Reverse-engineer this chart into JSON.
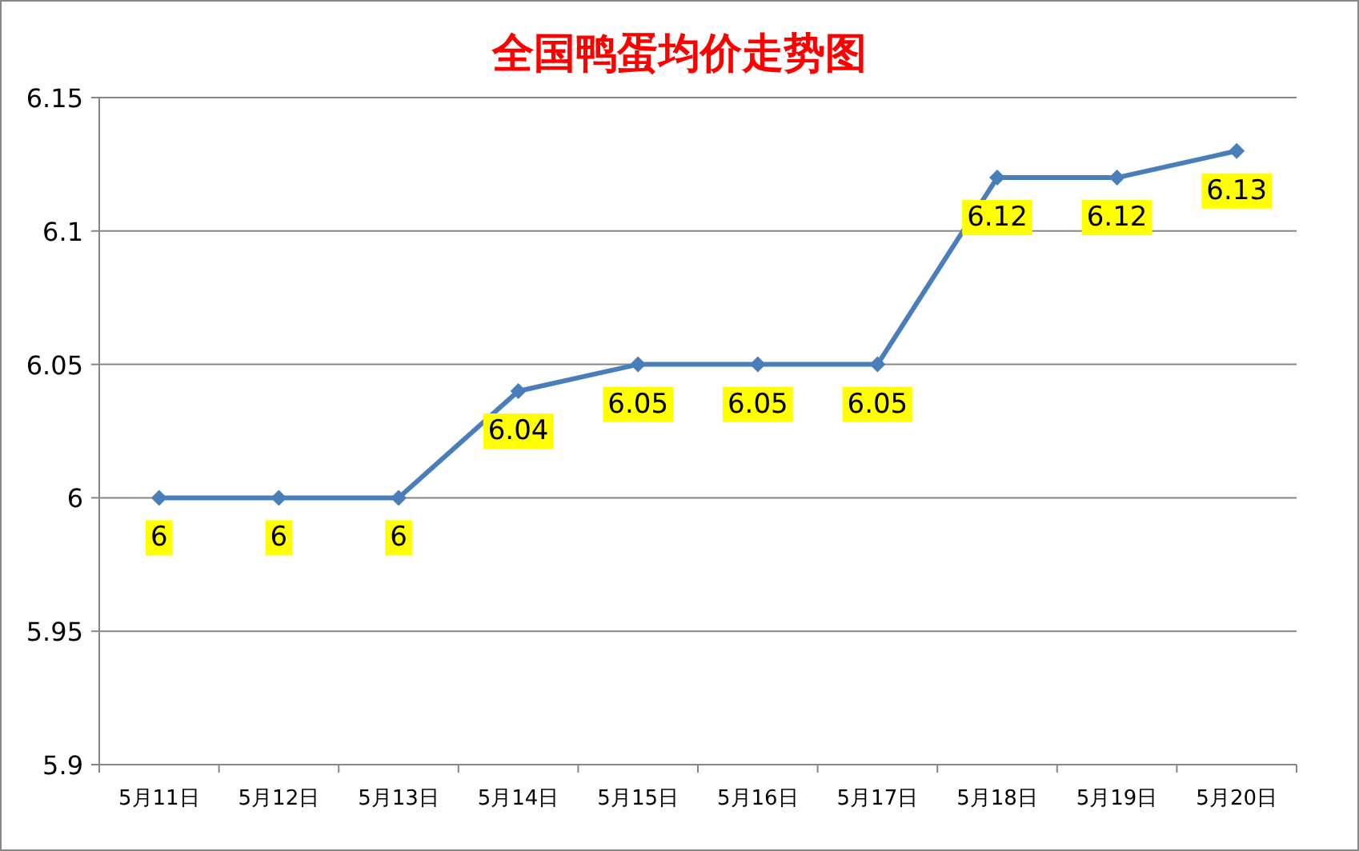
{
  "chart_data": {
    "type": "line",
    "title": "全国鸭蛋均价走势图",
    "categories": [
      "5月11日",
      "5月12日",
      "5月13日",
      "5月14日",
      "5月15日",
      "5月16日",
      "5月17日",
      "5月18日",
      "5月19日",
      "5月20日"
    ],
    "series": [
      {
        "color": "#4a7ebb",
        "values": [
          6,
          6,
          6,
          6.04,
          6.05,
          6.05,
          6.05,
          6.12,
          6.12,
          6.13
        ]
      }
    ],
    "ylim": [
      5.9,
      6.15
    ],
    "yticks": [
      5.9,
      5.95,
      6,
      6.05,
      6.1,
      6.15
    ],
    "grid": "y",
    "marker": "diamond",
    "line_style": "solid",
    "data_labels": true
  }
}
